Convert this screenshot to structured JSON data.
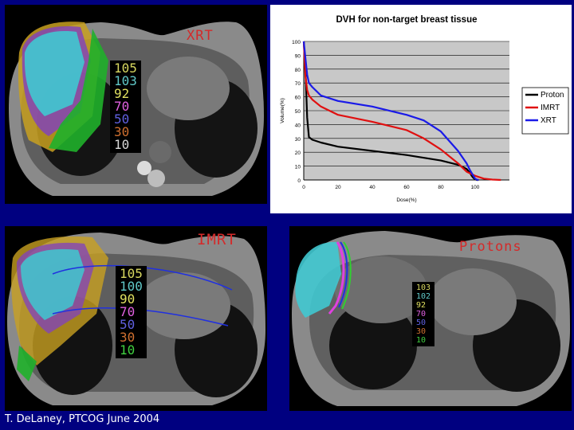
{
  "panels": {
    "xrt": {
      "label": "XRT",
      "isodose": [
        {
          "text": "105",
          "color": "#d8d860"
        },
        {
          "text": "103",
          "color": "#60c8c8"
        },
        {
          "text": "92",
          "color": "#e0e060"
        },
        {
          "text": "70",
          "color": "#e060e0"
        },
        {
          "text": "50",
          "color": "#6060e0"
        },
        {
          "text": "30",
          "color": "#d07030"
        },
        {
          "text": "10",
          "color": "#d8d8d8"
        }
      ]
    },
    "imrt": {
      "label": "IMRT",
      "isodose": [
        {
          "text": "105",
          "color": "#d8d860"
        },
        {
          "text": "100",
          "color": "#60c8c8"
        },
        {
          "text": "90",
          "color": "#e0e060"
        },
        {
          "text": "70",
          "color": "#e060e0"
        },
        {
          "text": "50",
          "color": "#6060e0"
        },
        {
          "text": "30",
          "color": "#d07030"
        },
        {
          "text": "10",
          "color": "#40d040"
        }
      ]
    },
    "protons": {
      "label": "Protons",
      "isodose": [
        {
          "text": "103",
          "color": "#d8d860"
        },
        {
          "text": "102",
          "color": "#60c8c8"
        },
        {
          "text": "92",
          "color": "#e0e060"
        },
        {
          "text": "70",
          "color": "#e060e0"
        },
        {
          "text": "50",
          "color": "#6060e0"
        },
        {
          "text": "30",
          "color": "#d07030"
        },
        {
          "text": "10",
          "color": "#40d040"
        }
      ]
    }
  },
  "chart_data": {
    "type": "line",
    "title": "DVH for non-target breast tissue",
    "xlabel": "Dose(%)",
    "ylabel": "Volume(%)",
    "xlim": [
      0,
      120
    ],
    "ylim": [
      0,
      100
    ],
    "xticks": [
      0,
      20,
      40,
      60,
      80,
      100
    ],
    "yticks": [
      0,
      10,
      20,
      30,
      40,
      50,
      60,
      70,
      80,
      90,
      100
    ],
    "grid": "horizontal",
    "legend_position": "right",
    "series": [
      {
        "name": "Proton",
        "color": "#000000",
        "x": [
          0,
          1,
          2,
          3,
          5,
          10,
          20,
          40,
          60,
          80,
          90,
          95,
          97,
          98,
          99,
          100,
          101,
          102
        ],
        "y": [
          100,
          80,
          45,
          31,
          29,
          27,
          24,
          21,
          18,
          14,
          11,
          8,
          5,
          3,
          1.5,
          0.5,
          0,
          0
        ]
      },
      {
        "name": "IMRT",
        "color": "#e01010",
        "x": [
          0,
          1,
          2,
          3,
          5,
          10,
          20,
          40,
          60,
          70,
          80,
          90,
          95,
          100,
          105,
          110,
          115
        ],
        "y": [
          100,
          75,
          65,
          61,
          58,
          53,
          47,
          42,
          36,
          30,
          22,
          12,
          6,
          3,
          1,
          0.3,
          0
        ]
      },
      {
        "name": "XRT",
        "color": "#1a1ae8",
        "x": [
          0,
          1,
          2,
          3,
          5,
          10,
          20,
          40,
          60,
          70,
          80,
          90,
          95,
          97,
          99,
          100,
          101,
          102
        ],
        "y": [
          100,
          88,
          76,
          70,
          67,
          61,
          57,
          53,
          47,
          43,
          35,
          21,
          12,
          7,
          3,
          1,
          0.3,
          0
        ]
      }
    ]
  },
  "footer": "T. DeLaney, PTCOG June 2004"
}
